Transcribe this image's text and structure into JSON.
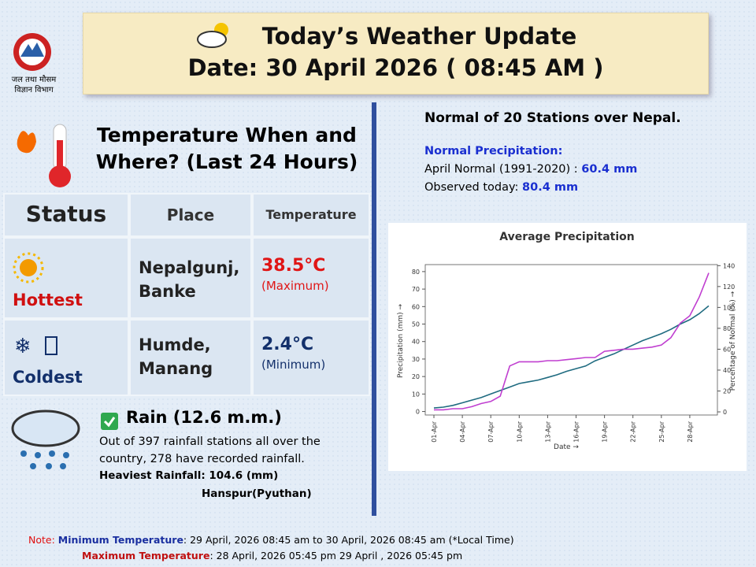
{
  "logo": {
    "line1": "जल तथा मौसम",
    "line2": "विज्ञान विभाग"
  },
  "header": {
    "title": "Today’s Weather Update",
    "date": "Date: 30 April 2026  ( 08:45 AM )"
  },
  "temperature": {
    "heading": "Temperature When and Where?  (Last 24 Hours)",
    "columns": [
      "Status",
      "Place",
      "Temperature"
    ],
    "rows": [
      [
        "Hottest",
        "Nepalgunj, Banke",
        "38.5°C",
        "(Maximum)"
      ],
      [
        "Coldest",
        "Humde, Manang",
        "2.4°C",
        "(Minimum)"
      ]
    ]
  },
  "rain": {
    "title": "Rain  (12.6  m.m.)",
    "text": "Out of 397 rainfall stations all over the country, 278 have recorded rainfall.",
    "heaviest": "Heaviest Rainfall: 104.6 (mm)",
    "station": "Hanspur(Pyuthan)"
  },
  "normal": {
    "title": "Normal of 20 Stations over Nepal.",
    "subtitle": "Normal Precipitation:",
    "april_label": "April Normal (1991-2020) : ",
    "april_value": "60.4 mm",
    "observed_label": "Observed today: ",
    "observed_value": "80.4 mm"
  },
  "chart_data": {
    "type": "line",
    "title": "Average Precipitation",
    "x_label": "Date →",
    "y_label": "Precipitation (mm) →",
    "y2_label": "Percentage of Normal (%) →",
    "categories": [
      "01-Apr",
      null,
      null,
      "04-Apr",
      null,
      null,
      "07-Apr",
      null,
      null,
      "10-Apr",
      null,
      null,
      "13-Apr",
      null,
      null,
      "16-Apr",
      null,
      null,
      "19-Apr",
      null,
      null,
      "22-Apr",
      null,
      null,
      "25-Apr",
      null,
      null,
      "28-Apr",
      null,
      null
    ],
    "series": [
      {
        "color": "#1f6b80",
        "values": [
          2,
          2.5,
          3.5,
          5,
          6.5,
          8,
          10,
          12,
          14,
          16,
          17,
          18,
          19.5,
          21,
          23,
          24.5,
          26,
          29,
          31,
          33,
          35.5,
          38,
          40.5,
          42.5,
          44.5,
          47,
          50,
          52.5,
          56,
          60.4
        ]
      },
      {
        "color": "#c03fd0",
        "axis": "y2",
        "values": [
          2,
          2,
          3,
          3,
          5,
          8,
          10,
          15,
          44,
          48,
          48,
          48,
          49,
          49,
          50,
          51,
          52,
          52,
          58,
          59,
          60,
          60,
          61,
          62,
          64,
          71,
          85,
          92,
          110,
          133
        ]
      }
    ],
    "ylim": [
      -2,
      84
    ],
    "yticks": [
      0,
      10,
      20,
      30,
      40,
      50,
      60,
      70,
      80
    ],
    "y2lim": [
      -3,
      141
    ],
    "y2ticks": [
      0,
      20,
      40,
      60,
      80,
      100,
      120,
      140
    ]
  },
  "notes": {
    "note_label": "Note:",
    "min_label": "Minimum Temperature",
    "min_text": ": 29 April, 2026  08:45 am  to 30 April, 2026  08:45 am (*Local Time)",
    "max_label": "Maximum Temperature",
    "max_text": ":  28 April, 2026  05:45 pm  29 April , 2026  05:45 pm"
  }
}
